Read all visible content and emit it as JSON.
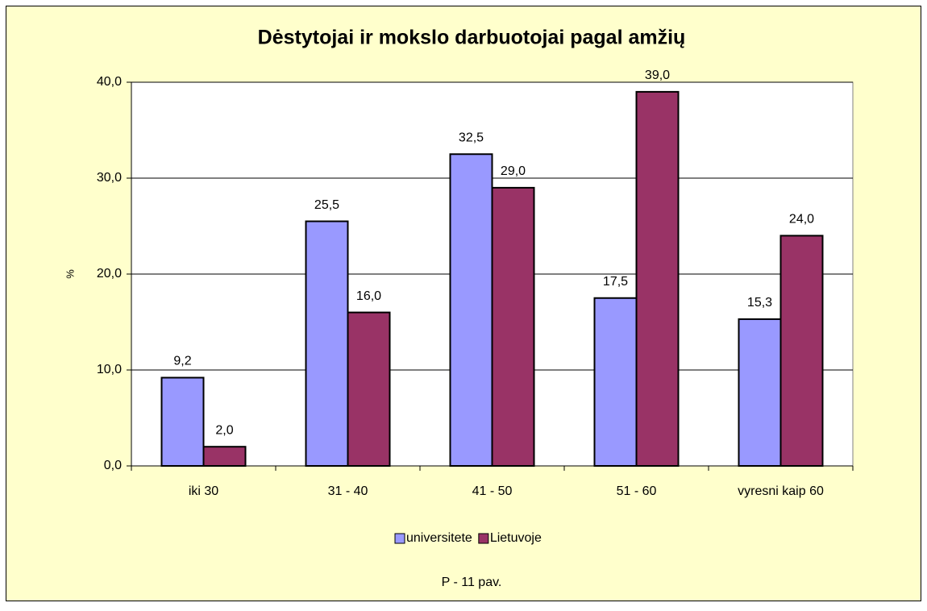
{
  "chart_data": {
    "type": "bar",
    "title": "Dėstytojai ir mokslo darbuotojai pagal amžių",
    "y_label": "%",
    "annotation": "P - 11 pav.",
    "categories": [
      "iki 30",
      "31 - 40",
      "41 - 50",
      "51 - 60",
      "vyresni kaip 60"
    ],
    "series": [
      {
        "name": "universitete",
        "color": "#9999ff",
        "values": [
          9.2,
          25.5,
          32.5,
          17.5,
          15.3
        ],
        "value_labels": [
          "9,2",
          "25,5",
          "32,5",
          "17,5",
          "15,3"
        ]
      },
      {
        "name": "Lietuvoje",
        "color": "#993366",
        "values": [
          2.0,
          16.0,
          29.0,
          39.0,
          24.0
        ],
        "value_labels": [
          "2,0",
          "16,0",
          "29,0",
          "39,0",
          "24,0"
        ]
      }
    ],
    "ylim": [
      0,
      40
    ],
    "yticks": [
      {
        "value": 0,
        "label": "0,0"
      },
      {
        "value": 10,
        "label": "10,0"
      },
      {
        "value": 20,
        "label": "20,0"
      },
      {
        "value": 30,
        "label": "30,0"
      },
      {
        "value": 40,
        "label": "40,0"
      }
    ],
    "grid": true,
    "legend": "bottom"
  }
}
